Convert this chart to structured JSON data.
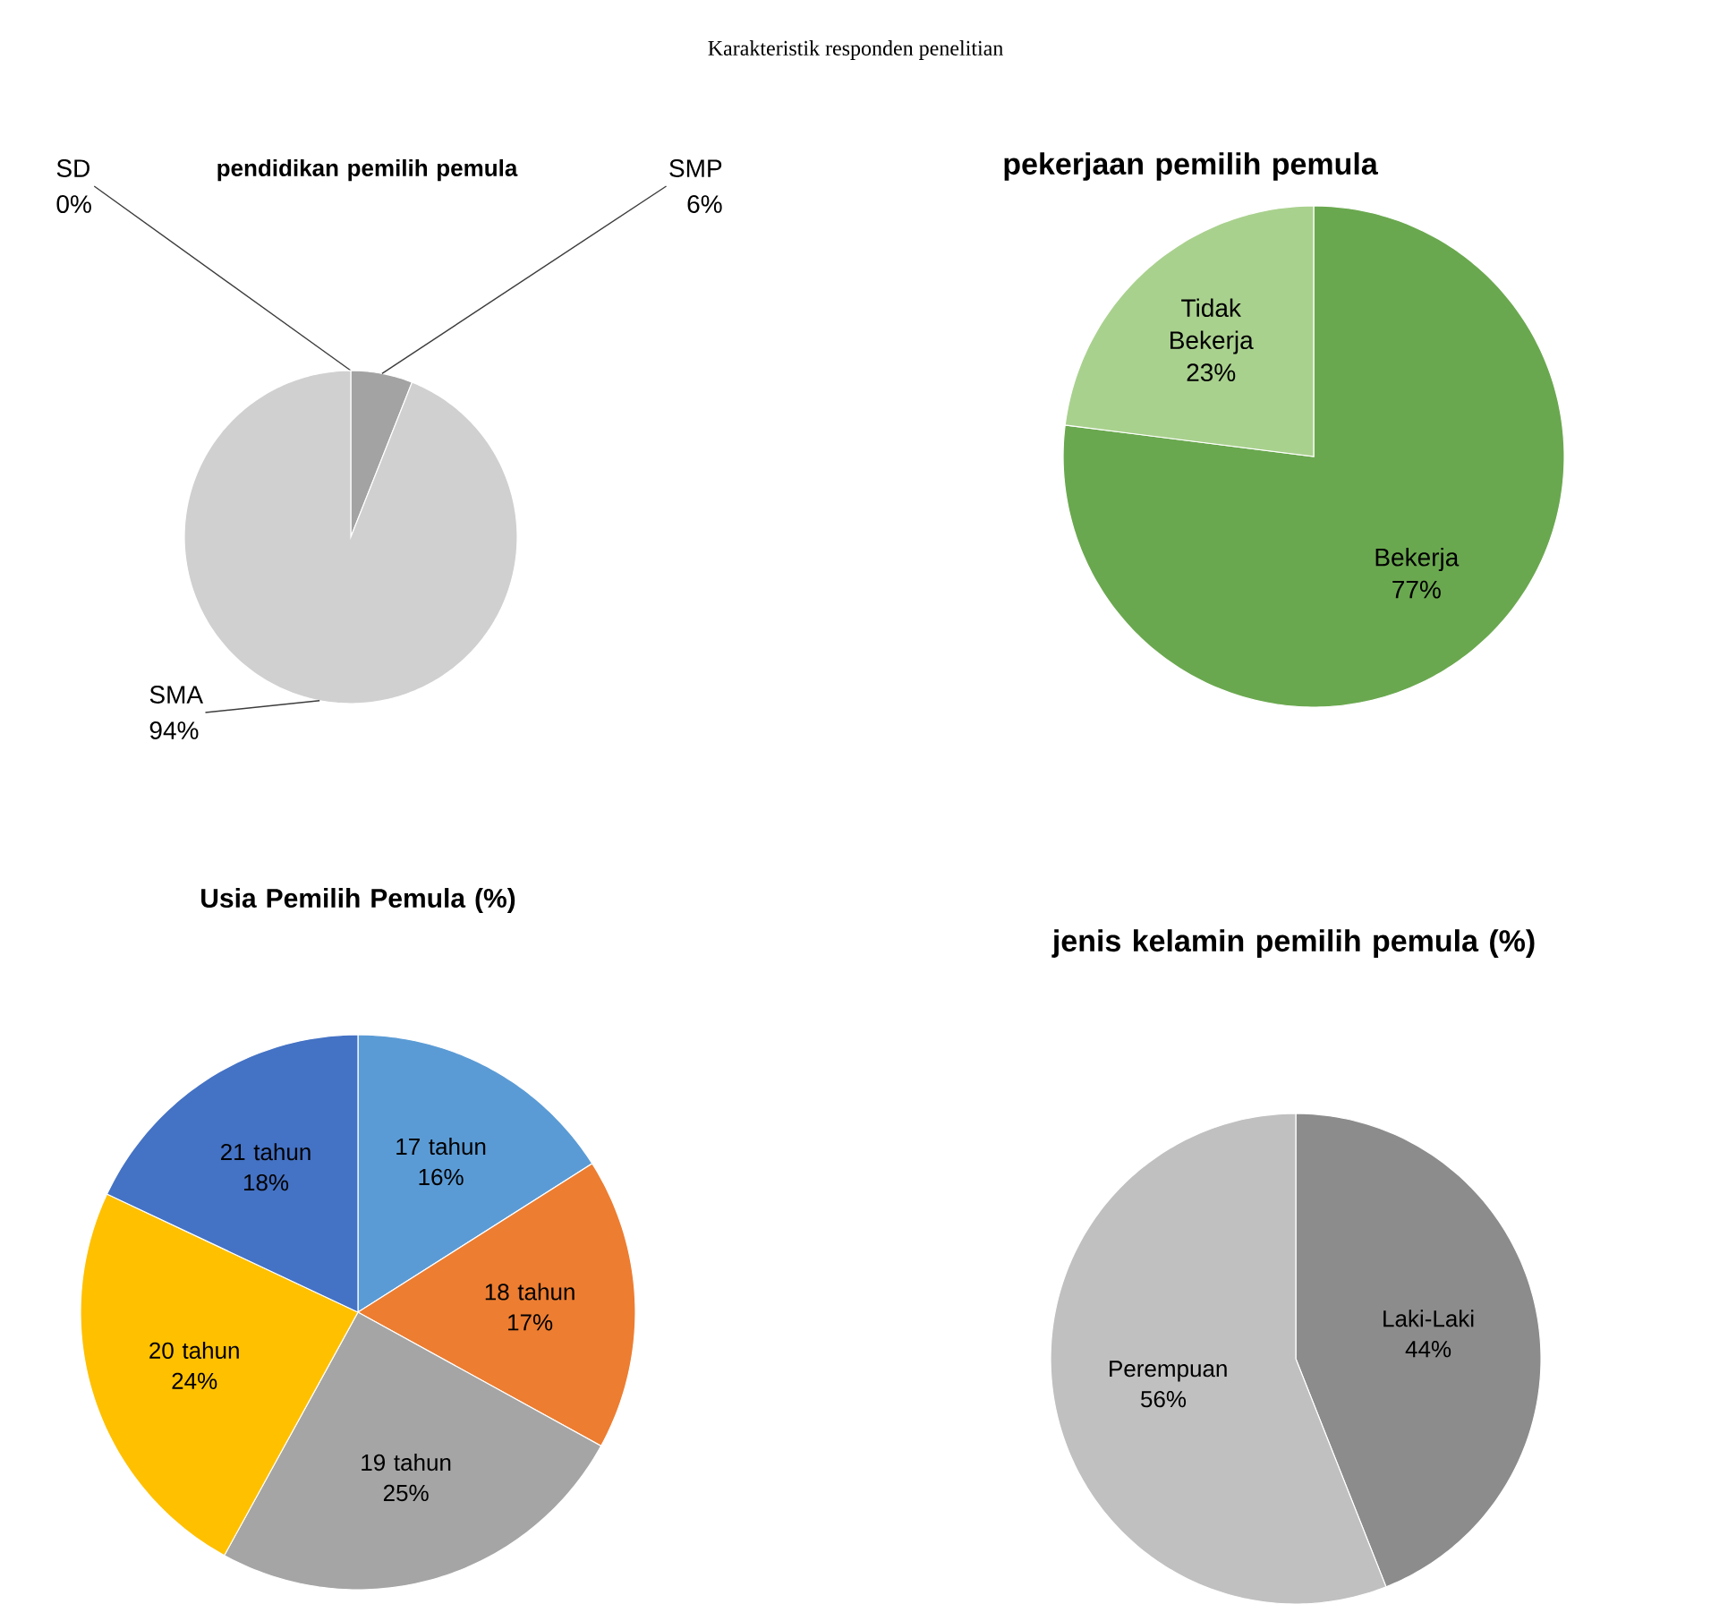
{
  "chart_data": [
    {
      "type": "other",
      "title": "Karakteristik responden penelitian"
    },
    {
      "type": "pie",
      "title": "pendidikan pemilih pemula",
      "categories": [
        "SD",
        "SMP",
        "SMA"
      ],
      "values": [
        0,
        6,
        94
      ],
      "value_labels": [
        "0%",
        "6%",
        "94%"
      ],
      "colors": [
        "#8f8f8f",
        "#a3a3a3",
        "#d0d0d0"
      ]
    },
    {
      "type": "pie",
      "title": "pekerjaan pemilih pemula",
      "categories": [
        "Bekerja",
        "Tidak Bekerja"
      ],
      "values": [
        77,
        23
      ],
      "value_labels": [
        "77%",
        "23%"
      ],
      "colors": [
        "#6aa84f",
        "#a9d18e"
      ]
    },
    {
      "type": "pie",
      "title": "Usia Pemilih Pemula  (%)",
      "categories": [
        "17 tahun",
        "18 tahun",
        "19 tahun",
        "20 tahun",
        "21 tahun"
      ],
      "values": [
        16,
        17,
        25,
        24,
        18
      ],
      "value_labels": [
        "16%",
        "17%",
        "25%",
        "24%",
        "18%"
      ],
      "colors": [
        "#5b9bd5",
        "#ed7d31",
        "#a5a5a5",
        "#ffc000",
        "#4472c4"
      ]
    },
    {
      "type": "pie",
      "title": "jenis kelamin pemilih pemula (%)",
      "categories": [
        "Laki-Laki",
        "Perempuan"
      ],
      "values": [
        44,
        56
      ],
      "value_labels": [
        "44%",
        "56%"
      ],
      "colors": [
        "#8c8c8c",
        "#c0c0c0"
      ]
    }
  ]
}
